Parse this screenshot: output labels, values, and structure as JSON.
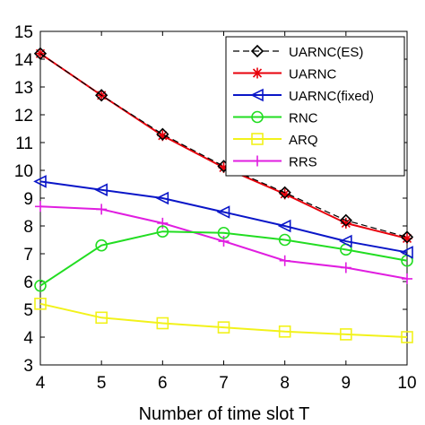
{
  "chart_data": {
    "type": "line",
    "title": "",
    "xlabel": "Number of time slot T",
    "ylabel": "",
    "x": [
      4,
      5,
      6,
      7,
      8,
      9,
      10
    ],
    "xlim": [
      4,
      10
    ],
    "ylim": [
      3,
      15
    ],
    "xticks": [
      "4",
      "5",
      "6",
      "7",
      "8",
      "9",
      "10"
    ],
    "yticks": [
      "3",
      "4",
      "5",
      "6",
      "7",
      "8",
      "9",
      "10",
      "11",
      "12",
      "13",
      "14",
      "15"
    ],
    "grid": false,
    "legend_position": "top-right",
    "series": [
      {
        "name": "UARNC(ES)",
        "color": "#000000",
        "dashed": true,
        "marker": "diamond",
        "values": [
          14.2,
          12.7,
          11.3,
          10.15,
          9.2,
          8.2,
          7.6
        ]
      },
      {
        "name": "UARNC",
        "color": "#e8000b",
        "dashed": false,
        "marker": "asterisk",
        "values": [
          14.2,
          12.7,
          11.25,
          10.1,
          9.15,
          8.1,
          7.55
        ]
      },
      {
        "name": "UARNC(fixed)",
        "color": "#0a16c8",
        "dashed": false,
        "marker": "triangle-left",
        "values": [
          9.6,
          9.3,
          9.0,
          8.5,
          8.0,
          7.45,
          7.05
        ]
      },
      {
        "name": "RNC",
        "color": "#22dd22",
        "dashed": false,
        "marker": "circle",
        "values": [
          5.85,
          7.3,
          7.8,
          7.75,
          7.5,
          7.15,
          6.75
        ]
      },
      {
        "name": "ARQ",
        "color": "#f2f21a",
        "dashed": false,
        "marker": "square",
        "values": [
          5.2,
          4.7,
          4.5,
          4.35,
          4.2,
          4.1,
          4.0
        ]
      },
      {
        "name": "RRS",
        "color": "#e01ee0",
        "dashed": false,
        "marker": "plus",
        "values": [
          8.7,
          8.6,
          8.1,
          7.45,
          6.75,
          6.5,
          6.1
        ]
      }
    ]
  }
}
